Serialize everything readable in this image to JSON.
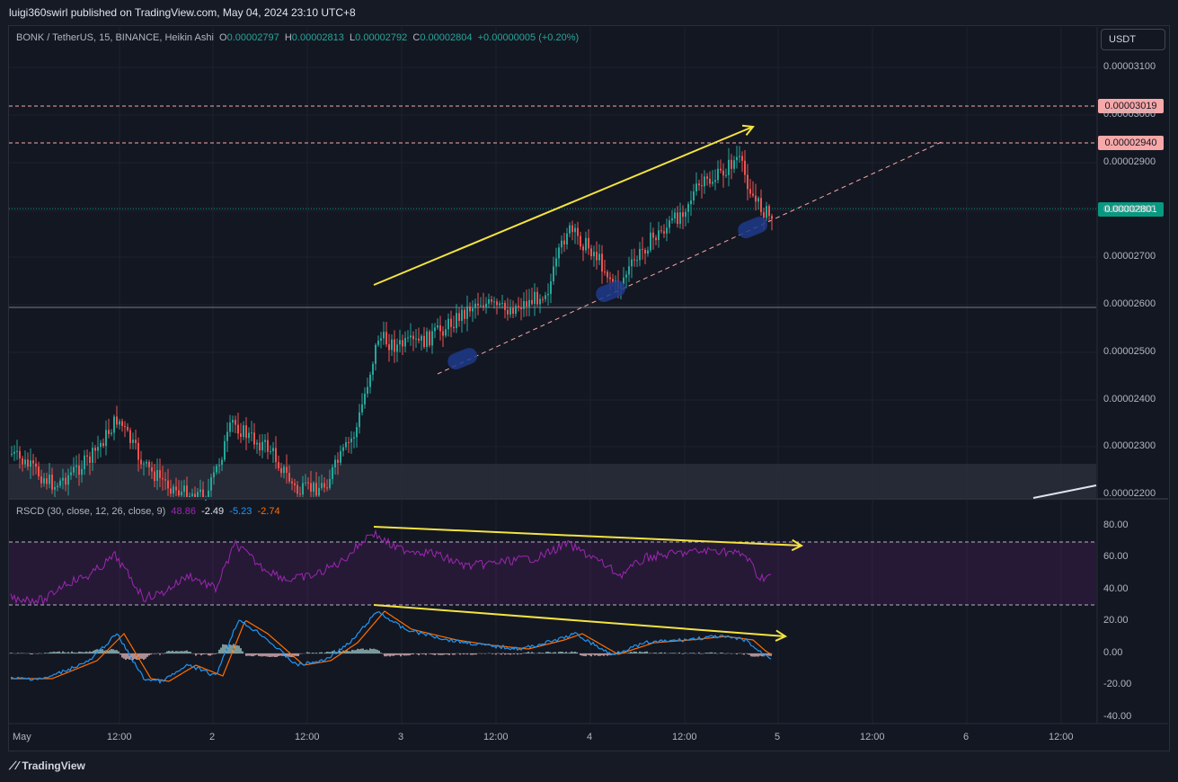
{
  "header": {
    "publisher_line": "luigi360swirl published on TradingView.com, May 04, 2024 23:10 UTC+8"
  },
  "legend": {
    "symbol": "BONK / TetherUS, 15, BINANCE, Heikin Ashi",
    "o_label": "O",
    "o_value": "0.00002797",
    "h_label": "H",
    "h_value": "0.00002813",
    "l_label": "L",
    "l_value": "0.00002792",
    "c_label": "C",
    "c_value": "0.00002804",
    "change": "+0.00000005 (+0.20%)"
  },
  "currency_button": "USDT",
  "price_axis": {
    "ticks": [
      "0.00003100",
      "0.00003000",
      "0.00002900",
      "0.00002800",
      "0.00002700",
      "0.00002600",
      "0.00002500",
      "0.00002400",
      "0.00002300",
      "0.00002200"
    ],
    "tag_top": "0.00003019",
    "tag_mid": "0.00002940",
    "tag_current": "0.00002801"
  },
  "indicator": {
    "name": "RSCD (30, close, 12, 26, close, 9)",
    "v1": "48.86",
    "v2": "-2.49",
    "v3": "-5.23",
    "v4": "-2.74",
    "ticks": [
      "80.00",
      "60.00",
      "40.00",
      "20.00",
      "0.00",
      "-20.00",
      "-40.00"
    ]
  },
  "time_axis": {
    "labels": [
      "May",
      "12:00",
      "2",
      "12:00",
      "3",
      "12:00",
      "4",
      "12:00",
      "5",
      "12:00",
      "6",
      "12:00"
    ]
  },
  "footer": {
    "brand": "TradingView"
  },
  "colors": {
    "up": "#26a69a",
    "down": "#ef5350",
    "rsi": "#9c27b0",
    "macd": "#2196f3",
    "signal": "#ff6d00",
    "annotation": "#f5e342",
    "tag_red": "#f7a8a8",
    "tag_green": "#089981"
  }
}
